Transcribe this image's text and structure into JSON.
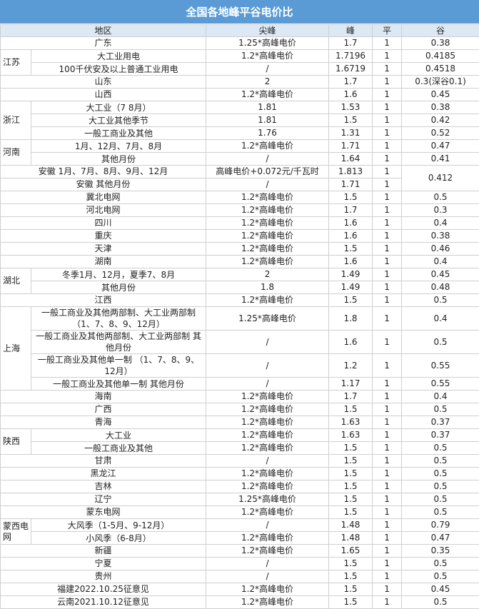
{
  "title": "全国各地峰平谷电价比",
  "headers": {
    "region": "地区",
    "jianfeng": "尖峰",
    "feng": "峰",
    "ping": "平",
    "gu": "谷"
  },
  "rows": [
    {
      "region": "广东",
      "jianfeng": "1.25*高峰电价",
      "feng": "1.7",
      "ping": "1",
      "gu": "0.38"
    },
    {
      "group": "江苏",
      "group_span": 2,
      "region": "大工业用电",
      "jianfeng": "1.2*高峰电价",
      "feng": "1.7196",
      "ping": "1",
      "gu": "0.4185"
    },
    {
      "in_group": true,
      "region": "100千伏安及以上普通工业用电",
      "jianfeng": "/",
      "feng": "1.6719",
      "ping": "1",
      "gu": "0.4518"
    },
    {
      "region": "山东",
      "jianfeng": "2",
      "feng": "1.7",
      "ping": "1",
      "gu": "0.3(深谷0.1)"
    },
    {
      "region": "山西",
      "jianfeng": "1.2*高峰电价",
      "feng": "1.6",
      "ping": "1",
      "gu": "0.45"
    },
    {
      "group": "浙江",
      "group_span": 3,
      "region": "大工业（7 8月）",
      "jianfeng": "1.81",
      "feng": "1.53",
      "ping": "1",
      "gu": "0.38"
    },
    {
      "in_group": true,
      "region": "大工业其他季节",
      "jianfeng": "1.81",
      "feng": "1.5",
      "ping": "1",
      "gu": "0.42"
    },
    {
      "in_group": true,
      "region": "一般工商业及其他",
      "jianfeng": "1.76",
      "feng": "1.31",
      "ping": "1",
      "gu": "0.52"
    },
    {
      "group": "河南",
      "group_span": 2,
      "region": "1月、12月、7月、8月",
      "jianfeng": "1.2*高峰电价",
      "feng": "1.71",
      "ping": "1",
      "gu": "0.47"
    },
    {
      "in_group": true,
      "region": "其他月份",
      "jianfeng": "/",
      "feng": "1.64",
      "ping": "1",
      "gu": "0.41"
    },
    {
      "region": "安徽 1月、7月、8月、9月、12月",
      "jianfeng": "高峰电价+0.072元/千瓦时",
      "feng": "1.813",
      "ping": "1",
      "gu": "0.412",
      "gu_span": 2
    },
    {
      "region": "安徽 其他月份",
      "jianfeng": "/",
      "feng": "1.71",
      "ping": "1",
      "gu_merged": true
    },
    {
      "region": "冀北电网",
      "jianfeng": "1.2*高峰电价",
      "feng": "1.5",
      "ping": "1",
      "gu": "0.5"
    },
    {
      "region": "河北电网",
      "jianfeng": "1.2*高峰电价",
      "feng": "1.7",
      "ping": "1",
      "gu": "0.3"
    },
    {
      "region": "四川",
      "jianfeng": "1.2*高峰电价",
      "feng": "1.6",
      "ping": "1",
      "gu": "0.4"
    },
    {
      "region": "重庆",
      "jianfeng": "1.2*高峰电价",
      "feng": "1.6",
      "ping": "1",
      "gu": "0.38"
    },
    {
      "region": "天津",
      "jianfeng": "1.2*高峰电价",
      "feng": "1.5",
      "ping": "1",
      "gu": "0.46"
    },
    {
      "region": "湖南",
      "jianfeng": "1.2*高峰电价",
      "feng": "1.6",
      "ping": "1",
      "gu": "0.4"
    },
    {
      "group": "湖北",
      "group_span": 2,
      "region": "冬季1月、12月，夏季7、8月",
      "jianfeng": "2",
      "feng": "1.49",
      "ping": "1",
      "gu": "0.45"
    },
    {
      "in_group": true,
      "region": "其他月份",
      "jianfeng": "1.8",
      "feng": "1.49",
      "ping": "1",
      "gu": "0.48"
    },
    {
      "region": "江西",
      "jianfeng": "1.2*高峰电价",
      "feng": "1.5",
      "ping": "1",
      "gu": "0.5"
    },
    {
      "group": "上海",
      "group_span": 4,
      "region": "一般工商业及其他两部制、大工业两部制 （1、7、8、9、12月）",
      "jianfeng": "1.25*高峰电价",
      "feng": "1.8",
      "ping": "1",
      "gu": "0.4"
    },
    {
      "in_group": true,
      "region": "一般工商业及其他两部制、大工业两部制 其他月份",
      "jianfeng": "/",
      "feng": "1.6",
      "ping": "1",
      "gu": "0.5"
    },
    {
      "in_group": true,
      "region": "一般工商业及其他单一制 （1、7、8、9、12月）",
      "jianfeng": "/",
      "feng": "1.2",
      "ping": "1",
      "gu": "0.55"
    },
    {
      "in_group": true,
      "region": "一般工商业及其他单一制 其他月份",
      "jianfeng": "/",
      "feng": "1.17",
      "ping": "1",
      "gu": "0.55"
    },
    {
      "region": "海南",
      "jianfeng": "1.2*高峰电价",
      "feng": "1.7",
      "ping": "1",
      "gu": "0.4"
    },
    {
      "region": "广西",
      "jianfeng": "1.2*高峰电价",
      "feng": "1.5",
      "ping": "1",
      "gu": "0.5"
    },
    {
      "region": "青海",
      "jianfeng": "1.2*高峰电价",
      "feng": "1.63",
      "ping": "1",
      "gu": "0.37"
    },
    {
      "group": "陕西",
      "group_span": 2,
      "region": "大工业",
      "jianfeng": "1.2*高峰电价",
      "feng": "1.63",
      "ping": "1",
      "gu": "0.37"
    },
    {
      "in_group": true,
      "region": "一般工商业及其他",
      "jianfeng": "1.2*高峰电价",
      "feng": "1.5",
      "ping": "1",
      "gu": "0.5"
    },
    {
      "region": "甘肃",
      "jianfeng": "/",
      "feng": "1.5",
      "ping": "1",
      "gu": "0.5"
    },
    {
      "region": "黑龙江",
      "jianfeng": "1.2*高峰电价",
      "feng": "1.5",
      "ping": "1",
      "gu": "0.5"
    },
    {
      "region": "吉林",
      "jianfeng": "1.2*高峰电价",
      "feng": "1.5",
      "ping": "1",
      "gu": "0.5"
    },
    {
      "region": "辽宁",
      "jianfeng": "1.25*高峰电价",
      "feng": "1.5",
      "ping": "1",
      "gu": "0.5"
    },
    {
      "region": "蒙东电网",
      "jianfeng": "1.2*高峰电价",
      "feng": "1.5",
      "ping": "1",
      "gu": "0.5"
    },
    {
      "group": "蒙西电网",
      "group_span": 2,
      "region": "大风季（1-5月、9-12月）",
      "jianfeng": "/",
      "feng": "1.48",
      "ping": "1",
      "gu": "0.79"
    },
    {
      "in_group": true,
      "region": "小风季（6-8月）",
      "jianfeng": "1.2*高峰电价",
      "feng": "1.48",
      "ping": "1",
      "gu": "0.47"
    },
    {
      "region": "新疆",
      "jianfeng": "1.2*高峰电价",
      "feng": "1.65",
      "ping": "1",
      "gu": "0.35"
    },
    {
      "region": "宁夏",
      "jianfeng": "/",
      "feng": "1.5",
      "ping": "1",
      "gu": "0.5"
    },
    {
      "region": "贵州",
      "jianfeng": "/",
      "feng": "1.5",
      "ping": "1",
      "gu": "0.5"
    },
    {
      "region": "福建2022.10.25征意见",
      "jianfeng": "1.2*高峰电价",
      "feng": "1.5",
      "ping": "1",
      "gu": "0.45"
    },
    {
      "region": "云南2021.10.12征意见",
      "jianfeng": "1.2*高峰电价",
      "feng": "1.5",
      "ping": "1",
      "gu": "0.5"
    }
  ]
}
